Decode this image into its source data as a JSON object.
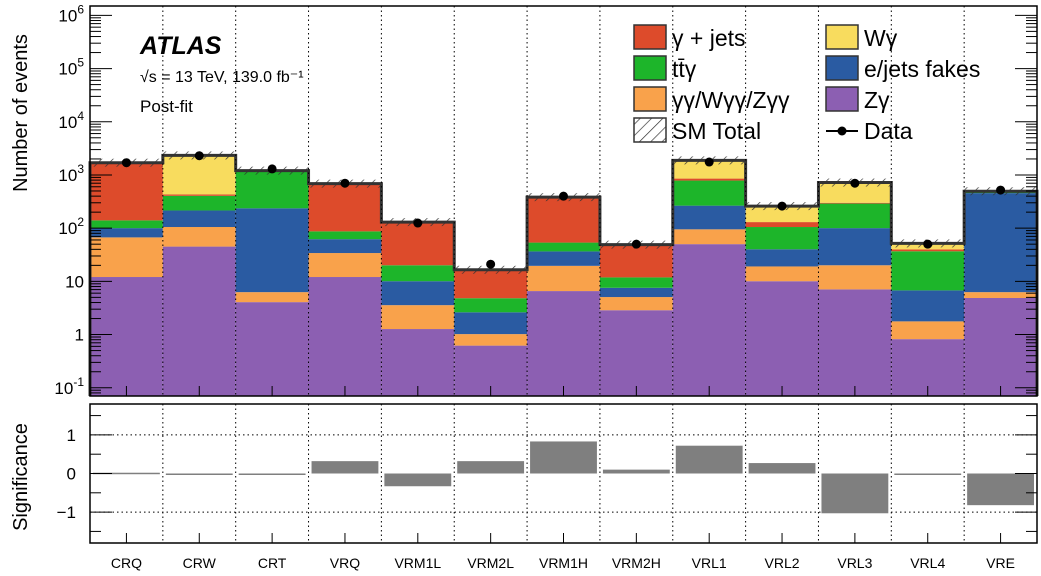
{
  "chart_data": {
    "type": "bar",
    "categories": [
      "CRQ",
      "CRW",
      "CRT",
      "VRQ",
      "VRM1L",
      "VRM2L",
      "VRM1H",
      "VRM2H",
      "VRL1",
      "VRL2",
      "VRL3",
      "VRL4",
      "VRE"
    ],
    "stack_series": [
      {
        "name": "Zγ",
        "legend_label": "Zγ",
        "color": "#8c5fb2",
        "values": [
          12,
          45,
          4,
          12,
          1.2,
          0.55,
          6.5,
          2.8,
          50,
          10,
          7,
          0.75,
          4.8
        ]
      },
      {
        "name": "γγ/Wγγ/Zγγ",
        "legend_label": "γγ/Wγγ/Zγγ",
        "color": "#f9a24b",
        "values": [
          55,
          60,
          2.2,
          22,
          2.3,
          0.4,
          13,
          2.2,
          45,
          9,
          13,
          0.95,
          1.4
        ]
      },
      {
        "name": "e/jets fakes",
        "legend_label": "e/jets fakes",
        "color": "#2a5ba2",
        "values": [
          33,
          110,
          230,
          28,
          6.5,
          1.6,
          17,
          2.5,
          170,
          21,
          80,
          5,
          450
        ]
      },
      {
        "name": "tt̄γ",
        "legend_label": "tt̄γ",
        "color": "#1db52a",
        "values": [
          40,
          190,
          950,
          25,
          10,
          2.2,
          17,
          4.3,
          520,
          65,
          190,
          30,
          30
        ]
      },
      {
        "name": "γ + jets",
        "legend_label": "γ + jets",
        "color": "#dd4b2b",
        "values": [
          1560,
          25,
          20,
          600,
          110,
          11.8,
          330,
          37,
          70,
          25,
          10,
          3,
          8
        ]
      },
      {
        "name": "Wγ",
        "legend_label": "Wγ",
        "color": "#f8dc5e",
        "values": [
          0,
          1900,
          0,
          0,
          0,
          0,
          0,
          0,
          1025,
          130,
          420,
          12,
          0
        ]
      }
    ],
    "sm_total": [
      1700,
      2330,
      1206,
      687,
      130,
      16.5,
      383,
      49,
      1880,
      260,
      720,
      51.7,
      494
    ],
    "data_points": [
      1700,
      2300,
      1300,
      700,
      125,
      21,
      400,
      50,
      1750,
      260,
      700,
      50,
      520
    ],
    "significance": [
      0.02,
      -0.02,
      -0.02,
      0.32,
      -0.33,
      0.32,
      0.83,
      0.1,
      0.72,
      0.27,
      -1.03,
      -0.02,
      -0.82
    ],
    "ylim": [
      0.07,
      1500000
    ],
    "sig_ylim": [
      -1.8,
      1.8
    ],
    "y_scale": "log",
    "ylabel": "Number of events",
    "sig_ylabel": "Significance",
    "y_ticks": [
      "10^-1",
      "1",
      "10",
      "10^2",
      "10^3",
      "10^4",
      "10^5",
      "10^6"
    ],
    "sig_ticks": [
      "−1",
      "0",
      "1"
    ],
    "atlas_label": "ATLAS",
    "energy_label": "√s = 13 TeV, 139.0 fb⁻¹",
    "fit_label": "Post-fit",
    "legend": {
      "placement": "top-right",
      "sm_total": "SM Total",
      "data": "Data"
    },
    "grid": {
      "vertical_dotted": true,
      "significance_dotted": true
    }
  }
}
